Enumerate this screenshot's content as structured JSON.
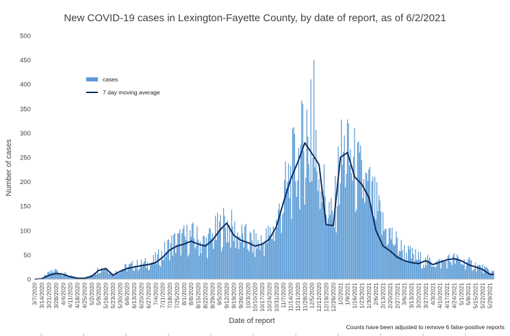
{
  "chart_data": {
    "type": "bar",
    "title": "New COVID-19 cases in Lexington-Fayette County, by date of report, as of 6/2/2021",
    "xlabel": "Date of report",
    "ylabel": "Number of cases",
    "ylim": [
      0,
      500
    ],
    "yticks": [
      0,
      50,
      100,
      150,
      200,
      250,
      300,
      350,
      400,
      450,
      500
    ],
    "xlim": [
      "2020-03-07",
      "2021-06-02"
    ],
    "xtick_labels": [
      "3/7/2020",
      "3/14/2020",
      "3/21/2020",
      "3/28/2020",
      "4/4/2020",
      "4/11/2020",
      "4/18/2020",
      "4/25/2020",
      "5/2/2020",
      "5/9/2020",
      "5/16/2020",
      "5/23/2020",
      "5/30/2020",
      "6/6/2020",
      "6/13/2020",
      "6/20/2020",
      "6/27/2020",
      "7/4/2020",
      "7/11/2020",
      "7/18/2020",
      "7/25/2020",
      "8/1/2020",
      "8/8/2020",
      "8/15/2020",
      "8/22/2020",
      "8/29/2020",
      "9/5/2020",
      "9/12/2020",
      "9/19/2020",
      "9/26/2020",
      "10/3/2020",
      "10/10/2020",
      "10/17/2020",
      "10/24/2020",
      "10/31/2020",
      "11/7/2020",
      "11/14/2020",
      "11/21/2020",
      "11/28/2020",
      "12/5/2020",
      "12/12/2020",
      "12/19/2020",
      "12/26/2020",
      "1/2/2021",
      "1/9/2021",
      "1/16/2021",
      "1/23/2021",
      "1/30/2021",
      "2/6/2021",
      "2/13/2021",
      "2/20/2021",
      "2/27/2021",
      "3/6/2021",
      "3/13/2021",
      "3/20/2021",
      "3/27/2021",
      "4/3/2021",
      "4/10/2021",
      "4/17/2021",
      "4/24/2021",
      "5/1/2021",
      "5/8/2021",
      "5/15/2021",
      "5/22/2021",
      "5/29/2021"
    ],
    "grid": false,
    "legend_position": "top-left",
    "series": [
      {
        "name": "cases",
        "type": "bar",
        "color": "#5b9bd5",
        "weekly_estimated_values": [
          1,
          2,
          12,
          18,
          12,
          6,
          3,
          2,
          8,
          20,
          25,
          10,
          20,
          24,
          28,
          30,
          32,
          38,
          50,
          68,
          75,
          80,
          85,
          78,
          72,
          85,
          100,
          112,
          95,
          85,
          78,
          70,
          75,
          85,
          110,
          160,
          205,
          240,
          270,
          250,
          230,
          155,
          110,
          240,
          255,
          220,
          195,
          175,
          145,
          105,
          90,
          70,
          55,
          48,
          42,
          35,
          35,
          32,
          38,
          40,
          35,
          32,
          28,
          22,
          15
        ],
        "peak_values": [
          {
            "date": "12/7/2020",
            "value": 450
          },
          {
            "date": "12/4/2020",
            "value": 410
          },
          {
            "date": "11/26/2020",
            "value": 360
          },
          {
            "date": "11/30/2020",
            "value": 348
          },
          {
            "date": "1/9/2021",
            "value": 328
          },
          {
            "date": "1/10/2021",
            "value": 320
          }
        ]
      },
      {
        "name": "7 day moving average",
        "type": "line",
        "color": "#0d2a5c",
        "weekly_estimated_values": [
          0,
          1,
          8,
          12,
          10,
          5,
          2,
          2,
          6,
          18,
          22,
          8,
          16,
          22,
          25,
          28,
          30,
          34,
          45,
          60,
          68,
          72,
          78,
          72,
          68,
          80,
          100,
          115,
          90,
          80,
          75,
          68,
          72,
          82,
          108,
          158,
          205,
          240,
          280,
          258,
          235,
          112,
          110,
          250,
          260,
          210,
          195,
          168,
          100,
          68,
          58,
          45,
          38,
          34,
          32,
          38,
          30,
          35,
          40,
          42,
          38,
          30,
          25,
          20,
          10
        ]
      }
    ],
    "note": "Counts have been adjusted to remove 6 false-positive reports"
  }
}
